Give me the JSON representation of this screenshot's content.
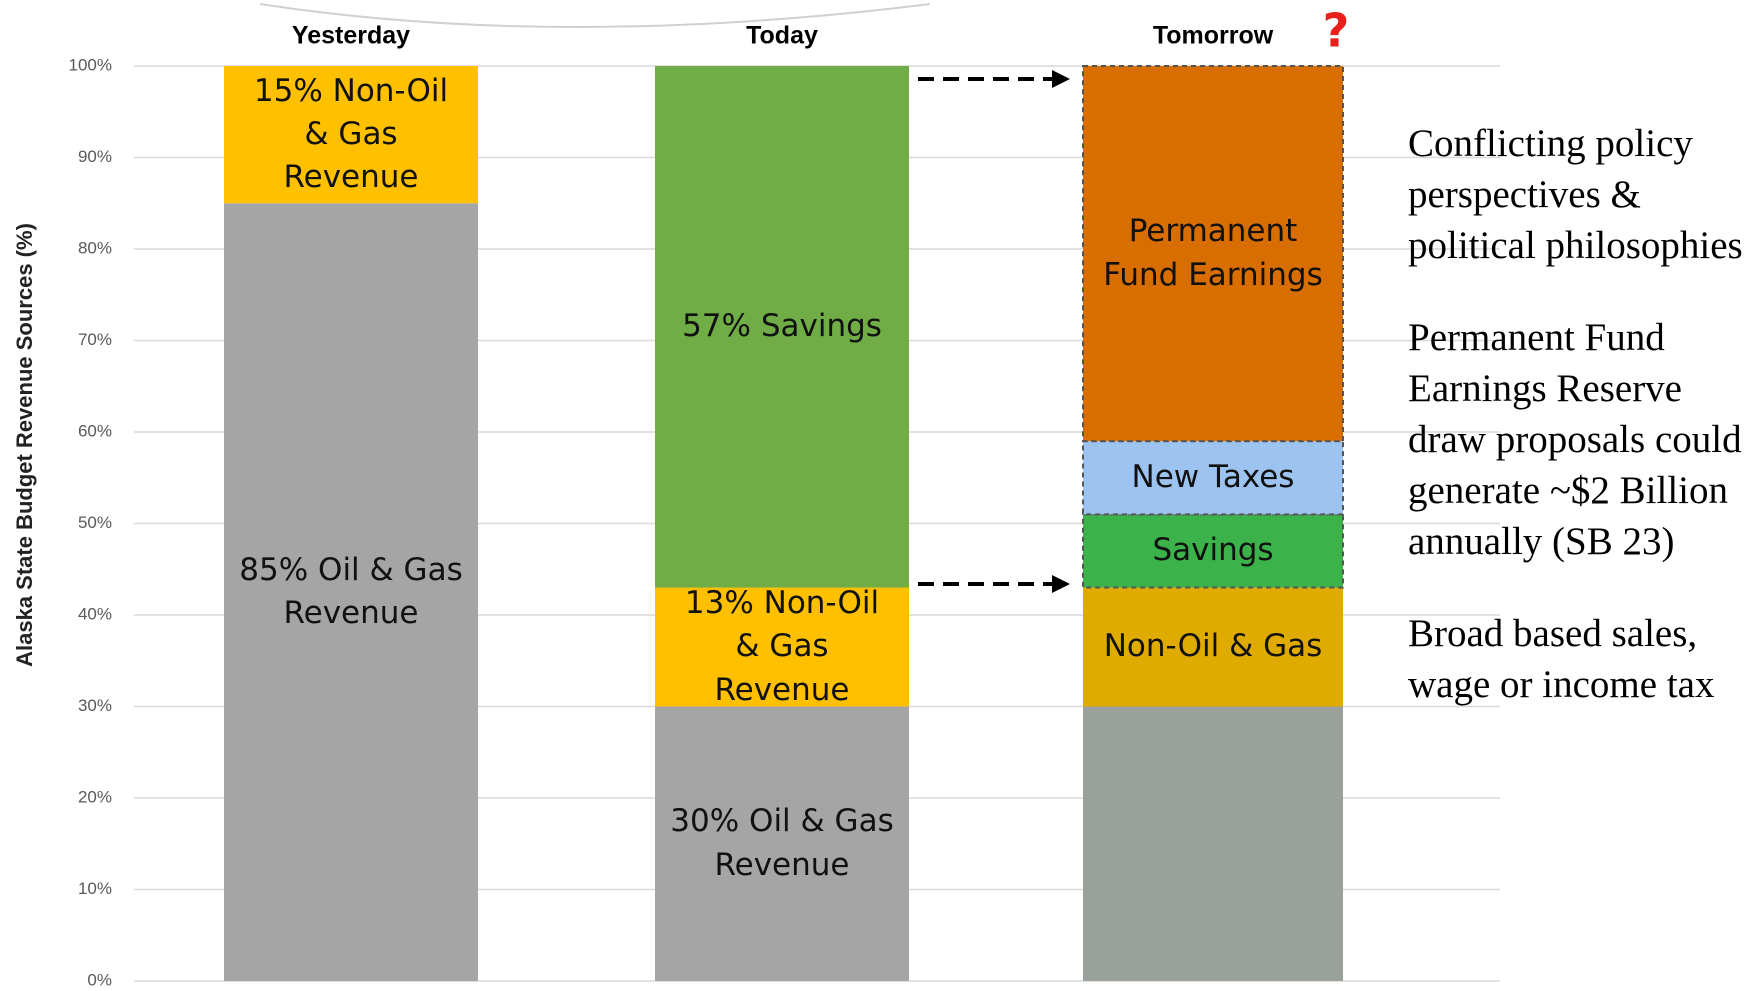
{
  "chart_data": {
    "type": "stacked-bar",
    "y_label": "Alaska State Budget Revenue Sources (%)",
    "categories": [
      "Yesterday",
      "Today",
      "Tomorrow"
    ],
    "ylim": [
      0,
      100
    ],
    "yticks": [
      {
        "value": 0,
        "label": "0%"
      },
      {
        "value": 10,
        "label": "10%"
      },
      {
        "value": 20,
        "label": "20%"
      },
      {
        "value": 30,
        "label": "30%"
      },
      {
        "value": 40,
        "label": "40%"
      },
      {
        "value": 50,
        "label": "50%"
      },
      {
        "value": 60,
        "label": "60%"
      },
      {
        "value": 70,
        "label": "70%"
      },
      {
        "value": 80,
        "label": "80%"
      },
      {
        "value": 90,
        "label": "90%"
      },
      {
        "value": 100,
        "label": "100%"
      }
    ],
    "grid": true,
    "series": [
      {
        "colors": [
          "#a5a5a5",
          "#a5a5a5",
          "#9aa09a"
        ],
        "values": [
          85,
          30,
          30
        ],
        "value_labels": [
          "85% Oil & Gas Revenue",
          "30% Oil & Gas Revenue",
          null
        ]
      },
      {
        "colors": [
          "#ffc000",
          "#ffc000",
          "#e0ab00"
        ],
        "values": [
          15,
          13,
          13
        ],
        "value_labels": [
          "15% Non-Oil & Gas Revenue",
          "13% Non-Oil & Gas Revenue",
          "Non-Oil & Gas"
        ]
      },
      {
        "colors": [
          null,
          "#70ad47",
          "#3bb34a"
        ],
        "values": [
          null,
          57,
          8
        ],
        "value_labels": [
          null,
          "57% Savings",
          "Savings"
        ],
        "borders": [
          null,
          null,
          "dashed"
        ]
      },
      {
        "colors": [
          null,
          null,
          "#9dc3f0"
        ],
        "values": [
          null,
          null,
          8
        ],
        "value_labels": [
          null,
          null,
          "New Taxes"
        ],
        "borders": [
          null,
          null,
          "dashed"
        ]
      },
      {
        "colors": [
          null,
          null,
          "#d86d00"
        ],
        "values": [
          null,
          null,
          41
        ],
        "value_labels": [
          null,
          null,
          "Permanent Fund Earnings"
        ],
        "borders": [
          null,
          null,
          "dashed"
        ]
      }
    ],
    "annotation": "?",
    "annotation_color": "#e8201c"
  },
  "notes": [
    "Conflicting policy perspectives & political philosophies",
    "Permanent Fund Earnings Reserve draw proposals could generate ~$2 Billion annually (SB 23)",
    "Broad based sales, wage or income tax"
  ]
}
